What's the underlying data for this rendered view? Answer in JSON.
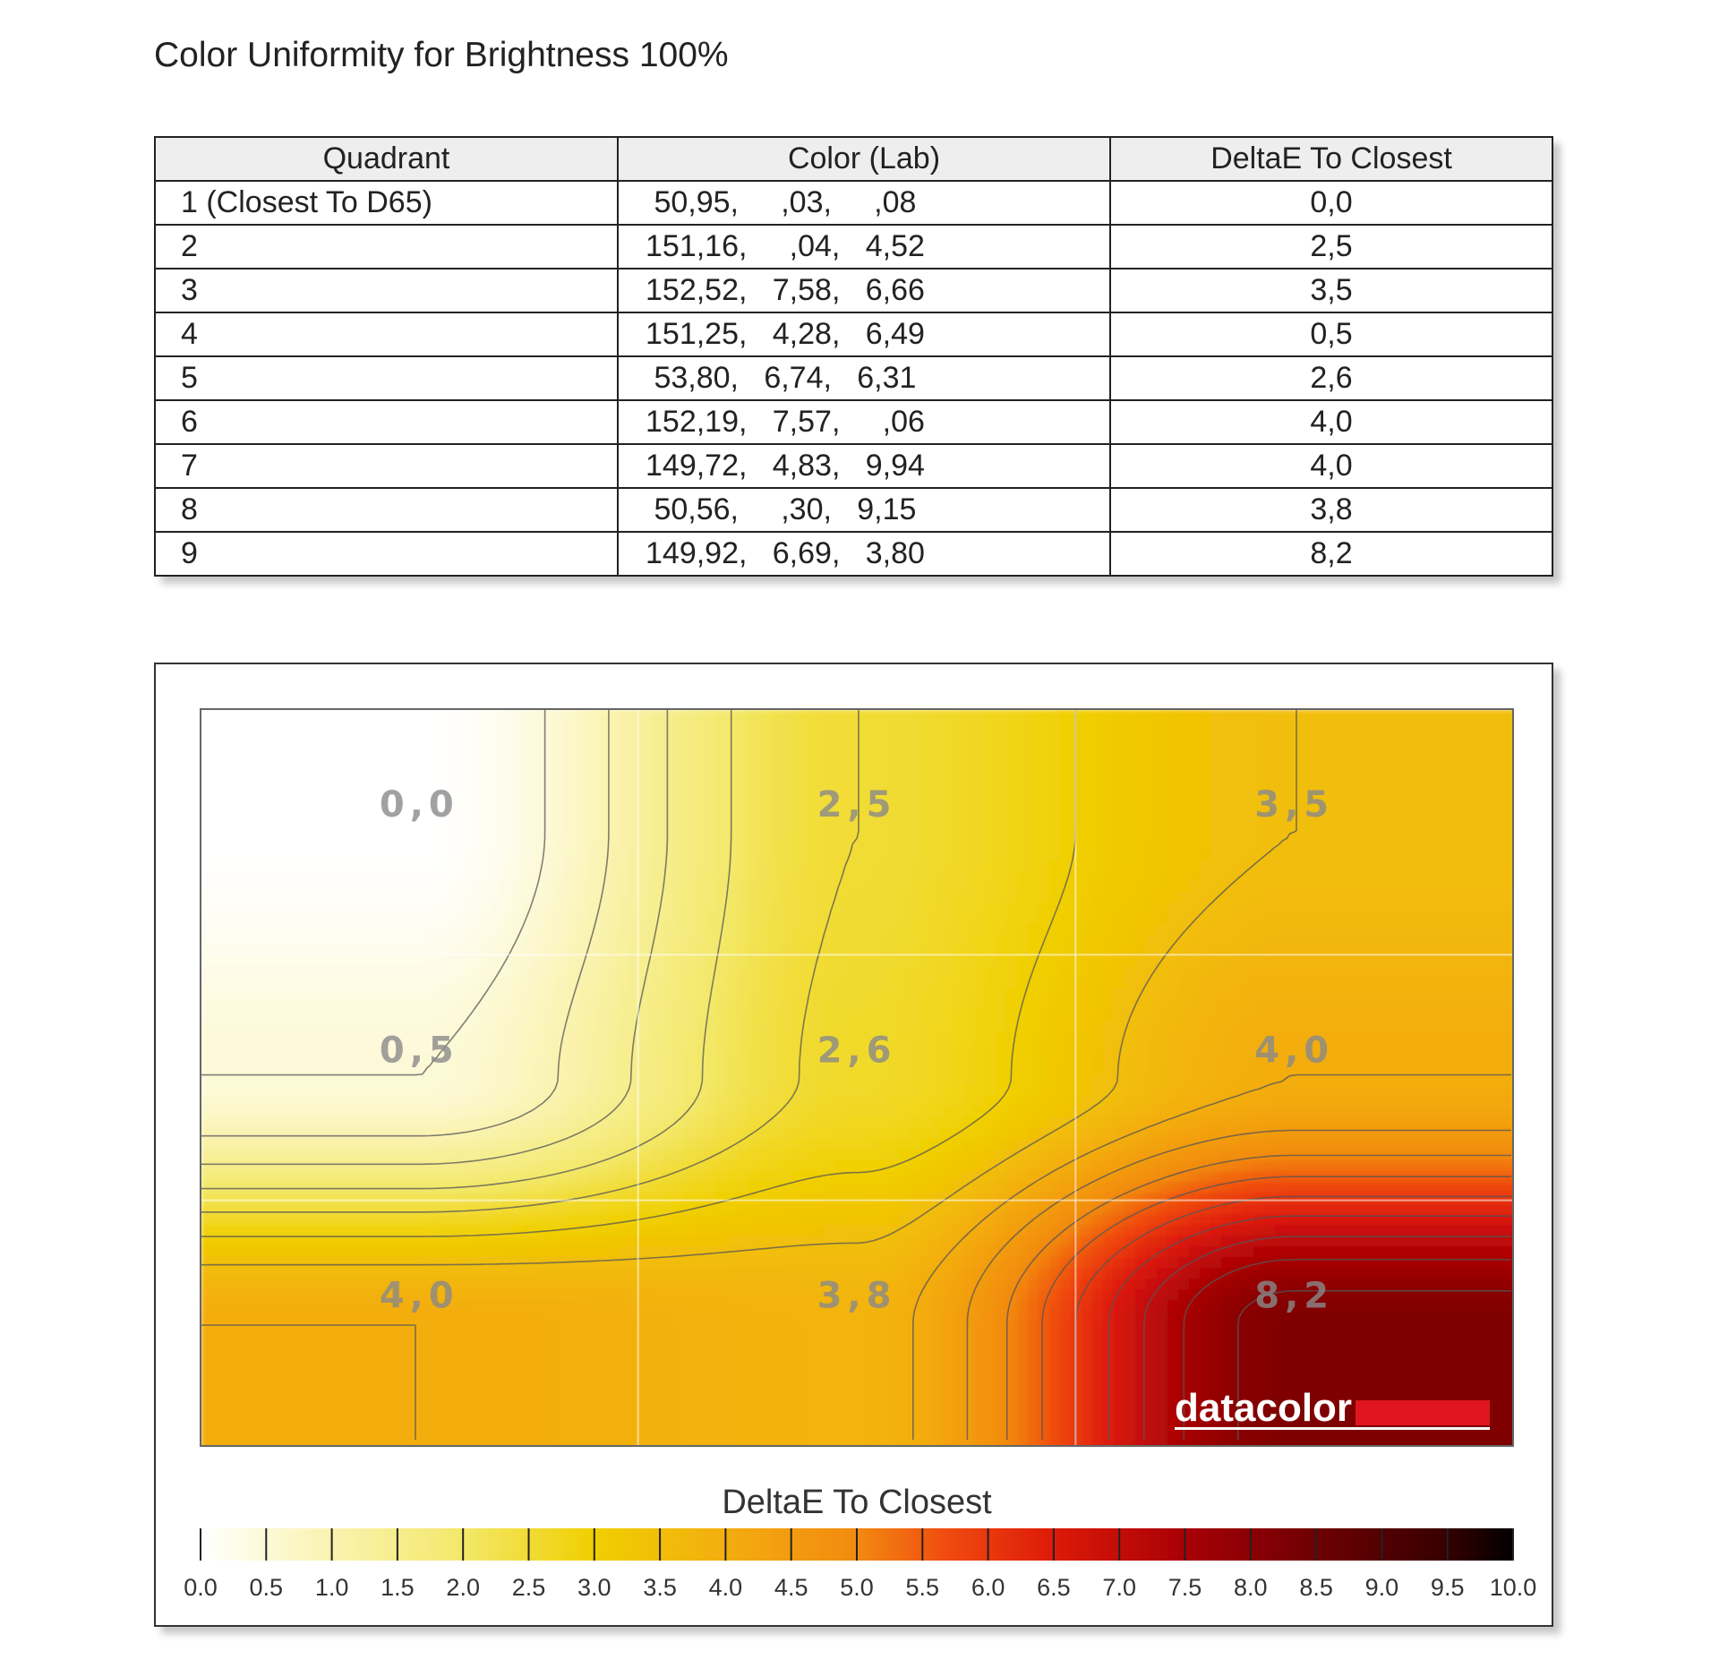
{
  "title": "Color Uniformity for Brightness 100%",
  "table": {
    "headers": [
      "Quadrant",
      "Color (Lab)",
      "DeltaE To Closest"
    ],
    "rows": [
      {
        "quadrant": "1 (Closest To D65)",
        "lab": " 50,95,     ,03,     ,08",
        "deltae": "0,0"
      },
      {
        "quadrant": "2",
        "lab": "151,16,     ,04,   4,52",
        "deltae": "2,5"
      },
      {
        "quadrant": "3",
        "lab": "152,52,   7,58,   6,66",
        "deltae": "3,5"
      },
      {
        "quadrant": "4",
        "lab": "151,25,   4,28,   6,49",
        "deltae": "0,5"
      },
      {
        "quadrant": "5",
        "lab": " 53,80,   6,74,   6,31",
        "deltae": "2,6"
      },
      {
        "quadrant": "6",
        "lab": "152,19,   7,57,     ,06",
        "deltae": "4,0"
      },
      {
        "quadrant": "7",
        "lab": "149,72,   4,83,   9,94",
        "deltae": "4,0"
      },
      {
        "quadrant": "8",
        "lab": " 50,56,     ,30,   9,15",
        "deltae": "3,8"
      },
      {
        "quadrant": "9",
        "lab": "149,92,   6,69,   3,80",
        "deltae": "8,2"
      }
    ]
  },
  "chart_data": {
    "type": "heatmap",
    "grid": {
      "rows": 3,
      "cols": 3
    },
    "values": [
      [
        0.0,
        2.5,
        3.5
      ],
      [
        0.5,
        2.6,
        4.0
      ],
      [
        4.0,
        3.8,
        8.2
      ]
    ],
    "cell_labels": [
      [
        "0,0",
        "2,5",
        "3,5"
      ],
      [
        "0,5",
        "2,6",
        "4,0"
      ],
      [
        "4,0",
        "3,8",
        "8,2"
      ]
    ],
    "color_scale": {
      "title": "DeltaE To Closest",
      "range": [
        0,
        10
      ],
      "ticks": [
        "0.0",
        "0.5",
        "1.0",
        "1.5",
        "2.0",
        "2.5",
        "3.0",
        "3.5",
        "4.0",
        "4.5",
        "5.0",
        "5.5",
        "6.0",
        "6.5",
        "7.0",
        "7.5",
        "8.0",
        "8.5",
        "9.0",
        "9.5",
        "10.0"
      ]
    },
    "colormap": [
      {
        "v": 0.0,
        "color": "#ffffff"
      },
      {
        "v": 1.0,
        "color": "#faf3b0"
      },
      {
        "v": 2.0,
        "color": "#f3e86a"
      },
      {
        "v": 3.0,
        "color": "#f0cf00"
      },
      {
        "v": 4.0,
        "color": "#f3ad10"
      },
      {
        "v": 5.0,
        "color": "#f28a10"
      },
      {
        "v": 5.7,
        "color": "#f04a10"
      },
      {
        "v": 6.5,
        "color": "#dd1a08"
      },
      {
        "v": 7.5,
        "color": "#a80006"
      },
      {
        "v": 8.5,
        "color": "#6e0003"
      },
      {
        "v": 9.5,
        "color": "#360000"
      },
      {
        "v": 10.0,
        "color": "#000000"
      }
    ],
    "watermark": "datacolor"
  }
}
